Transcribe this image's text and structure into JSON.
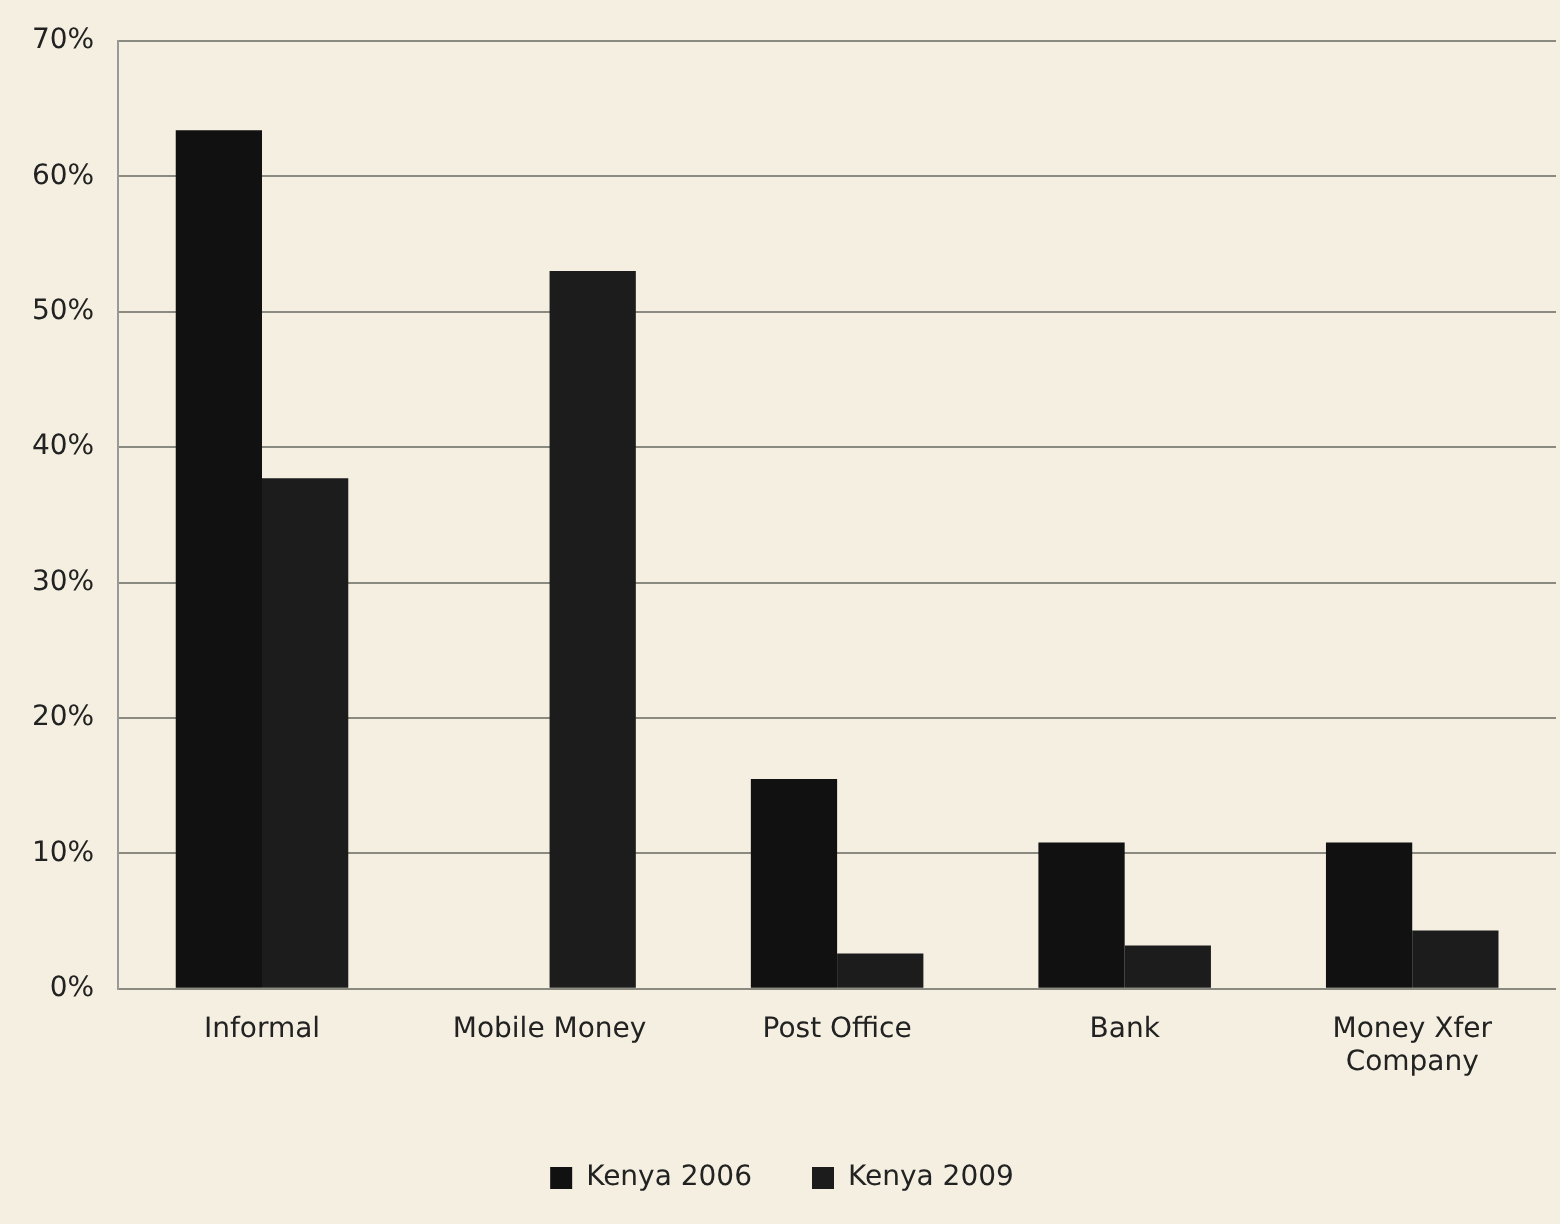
{
  "chart_data": {
    "type": "bar",
    "categories": [
      "Informal",
      "Mobile Money",
      "Post Office",
      "Bank",
      "Money Xfer Company"
    ],
    "series": [
      {
        "name": "Kenya 2006",
        "color": "#111111",
        "values": [
          63.4,
          null,
          15.5,
          10.8,
          10.8
        ]
      },
      {
        "name": "Kenya 2009",
        "color": "#1c1c1c",
        "values": [
          37.7,
          53.0,
          2.6,
          3.2,
          4.3
        ]
      }
    ],
    "ylim": [
      0,
      70
    ],
    "yticks": [
      {
        "value": 0,
        "label": "0%"
      },
      {
        "value": 10,
        "label": "10%"
      },
      {
        "value": 20,
        "label": "20%"
      },
      {
        "value": 30,
        "label": "30%"
      },
      {
        "value": 40,
        "label": "40%"
      },
      {
        "value": 50,
        "label": "50%"
      },
      {
        "value": 60,
        "label": "60%"
      },
      {
        "value": 70,
        "label": "70%"
      }
    ],
    "grid": "y",
    "legend": "bottom"
  }
}
